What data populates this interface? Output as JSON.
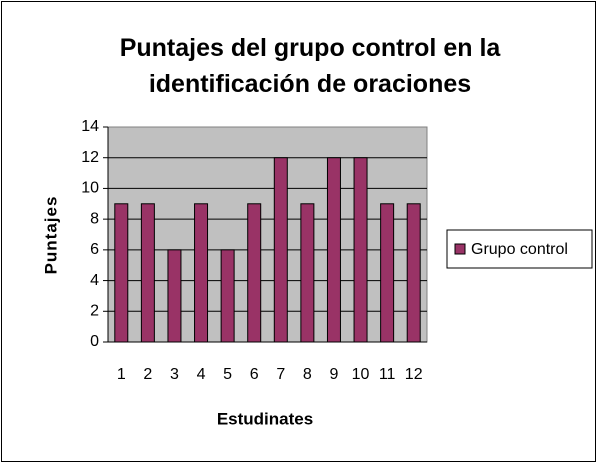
{
  "chart_data": {
    "type": "bar",
    "title": "Puntajes del grupo control en la identificación de oraciones",
    "x_label": "Estudinates",
    "y_label": "Puntajes",
    "categories": [
      "1",
      "2",
      "3",
      "4",
      "5",
      "6",
      "7",
      "8",
      "9",
      "10",
      "11",
      "12"
    ],
    "series": [
      {
        "name": "Grupo control",
        "color": "#993366",
        "values": [
          9,
          9,
          6,
          9,
          6,
          9,
          12,
          9,
          12,
          12,
          9,
          9
        ]
      }
    ],
    "ylim": [
      0,
      14
    ],
    "yticks": [
      0,
      2,
      4,
      6,
      8,
      10,
      12,
      14
    ],
    "grid": true,
    "legend": "right"
  }
}
